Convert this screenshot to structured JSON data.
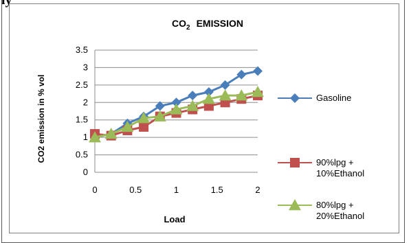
{
  "header": {
    "clipped_text": "ly"
  },
  "chart_data": {
    "type": "line",
    "title_main": "CO",
    "title_sub": "2",
    "title_rest": "EMISSION",
    "xlabel": "Load",
    "ylabel": "CO2 emission in % vol",
    "x": [
      0,
      0.2,
      0.4,
      0.6,
      0.8,
      1.0,
      1.2,
      1.4,
      1.6,
      1.8,
      2.0
    ],
    "xlim": [
      0,
      2
    ],
    "ylim": [
      0,
      3.5
    ],
    "x_ticks": [
      "0",
      "0.5",
      "1",
      "1.5",
      "2"
    ],
    "y_ticks": [
      "0",
      "0.5",
      "1",
      "1.5",
      "2",
      "2.5",
      "3",
      "3.5"
    ],
    "grid": "horizontal",
    "legend_position": "right",
    "series": [
      {
        "name": "Gasoline",
        "marker": "diamond",
        "color": "#4a7ebb",
        "values": [
          1.0,
          1.1,
          1.4,
          1.6,
          1.9,
          2.0,
          2.2,
          2.3,
          2.5,
          2.8,
          2.9
        ]
      },
      {
        "name": "90%lpg + 10%Ethanol",
        "legend_lines": [
          "90%lpg +",
          "10%Ethanol"
        ],
        "marker": "square",
        "color": "#c0504d",
        "values": [
          1.1,
          1.05,
          1.2,
          1.3,
          1.6,
          1.7,
          1.8,
          1.9,
          2.0,
          2.1,
          2.2
        ]
      },
      {
        "name": "80%lpg + 20%Ethanol",
        "legend_lines": [
          "80%lpg +",
          "20%Ethanol"
        ],
        "marker": "triangle",
        "color": "#9bbb59",
        "values": [
          1.0,
          1.1,
          1.3,
          1.55,
          1.6,
          1.8,
          1.9,
          2.1,
          2.2,
          2.2,
          2.3
        ]
      }
    ]
  }
}
